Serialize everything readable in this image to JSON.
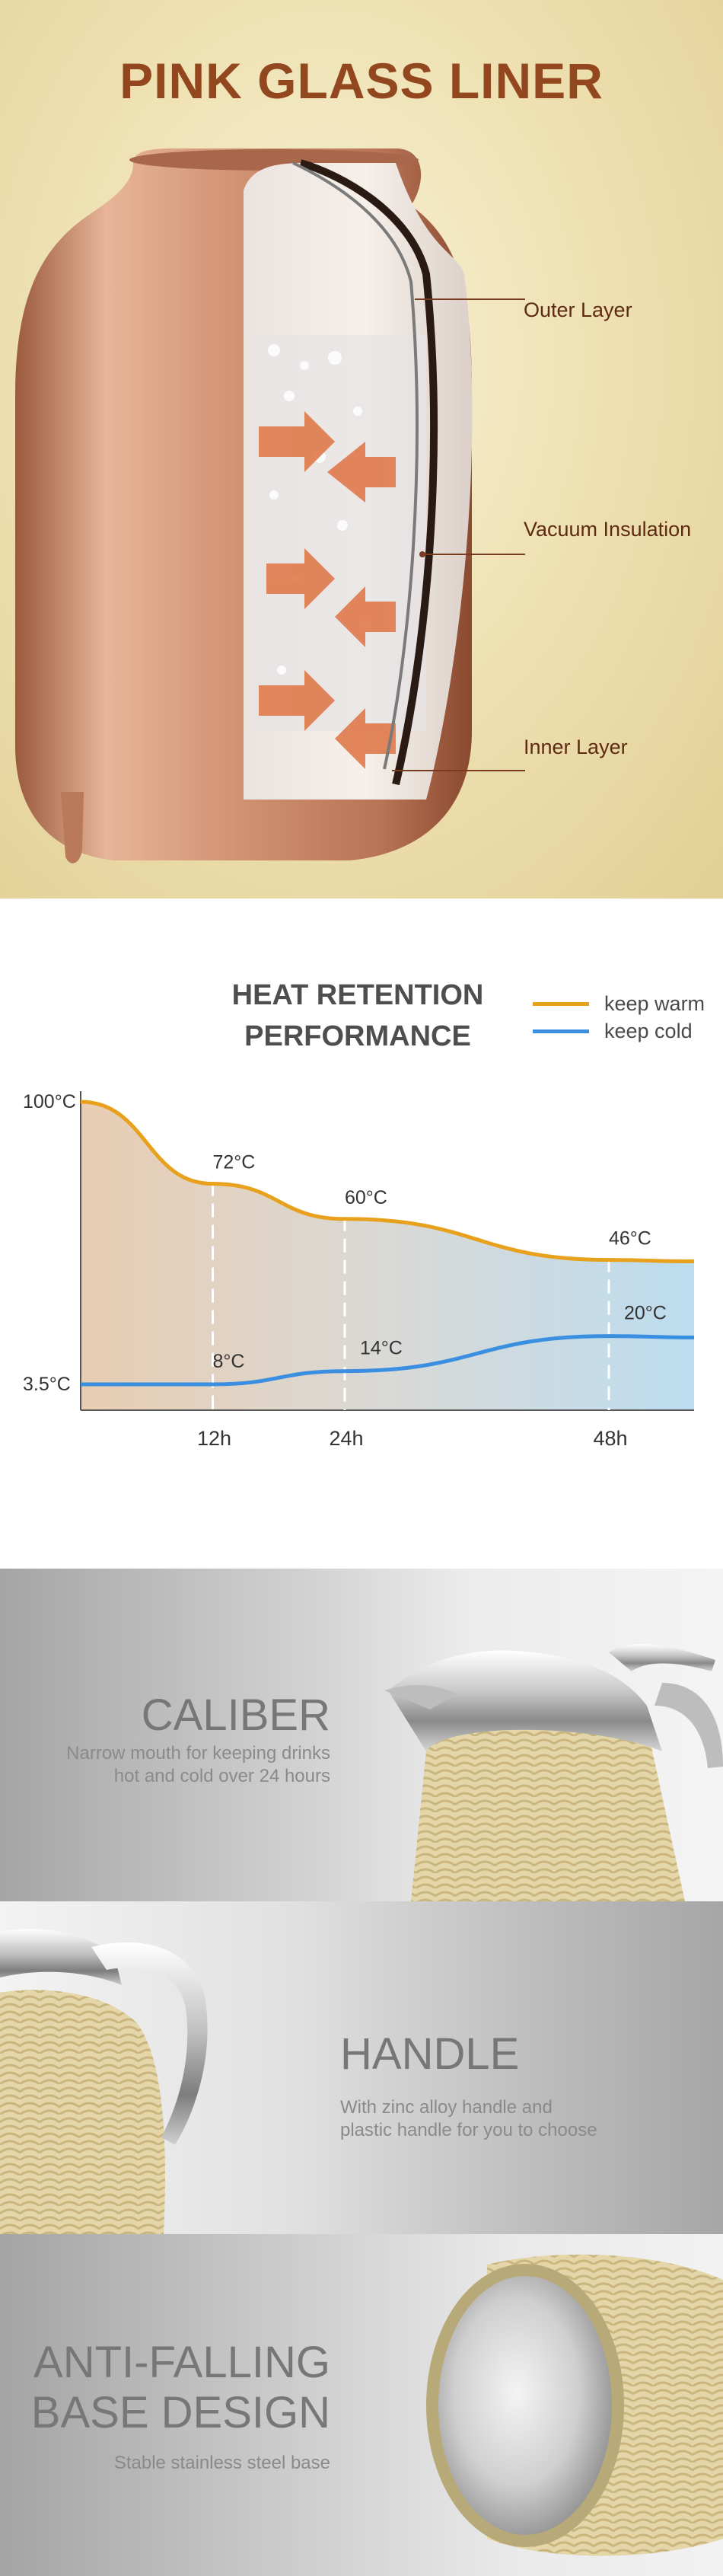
{
  "liner": {
    "title": "PINK GLASS LINER",
    "layers": [
      "Outer Layer",
      "Vacuum Insulation",
      "Inner Layer"
    ]
  },
  "performance": {
    "title_line1": "HEAT RETENTION",
    "title_line2": "PERFORMANCE",
    "chart_data": {
      "type": "line",
      "title": "HEAT RETENTION PERFORMANCE",
      "x_tick_labels": [
        "12h",
        "24h",
        "48h"
      ],
      "y_tick_labels": [
        "100°C",
        "3.5°C"
      ],
      "legend_position": "top-right",
      "series": [
        {
          "name": "keep warm",
          "color": "#e8a11c",
          "points": [
            {
              "x": 12,
              "y": 72,
              "label": "72°C"
            },
            {
              "x": 24,
              "y": 60,
              "label": "60°C"
            },
            {
              "x": 48,
              "y": 46,
              "label": "46°C"
            }
          ]
        },
        {
          "name": "keep cold",
          "color": "#3a8fe0",
          "points": [
            {
              "x": 12,
              "y": 8,
              "label": "8°C"
            },
            {
              "x": 24,
              "y": 14,
              "label": "14°C"
            },
            {
              "x": 48,
              "y": 20,
              "label": "20°C"
            }
          ]
        }
      ]
    }
  },
  "features": [
    {
      "title_lines": [
        "CALIBER"
      ],
      "desc_lines": [
        "Narrow mouth for keeping drinks",
        "hot and cold over 24 hours"
      ]
    },
    {
      "title_lines": [
        "HANDLE"
      ],
      "desc_lines": [
        "With zinc alloy handle and",
        "plastic handle for you to choose"
      ]
    },
    {
      "title_lines": [
        "ANTI-FALLING",
        "BASE DESIGN"
      ],
      "desc_lines": [
        "Stable stainless steel base"
      ]
    }
  ],
  "colors": {
    "title_brown": "#93471f",
    "label_brown": "#5e2a12",
    "rose_gold": "#c68b6a",
    "keep_warm": "#e8a11c",
    "keep_cold": "#3a8fe0",
    "wicker": "#e2d3a4"
  }
}
